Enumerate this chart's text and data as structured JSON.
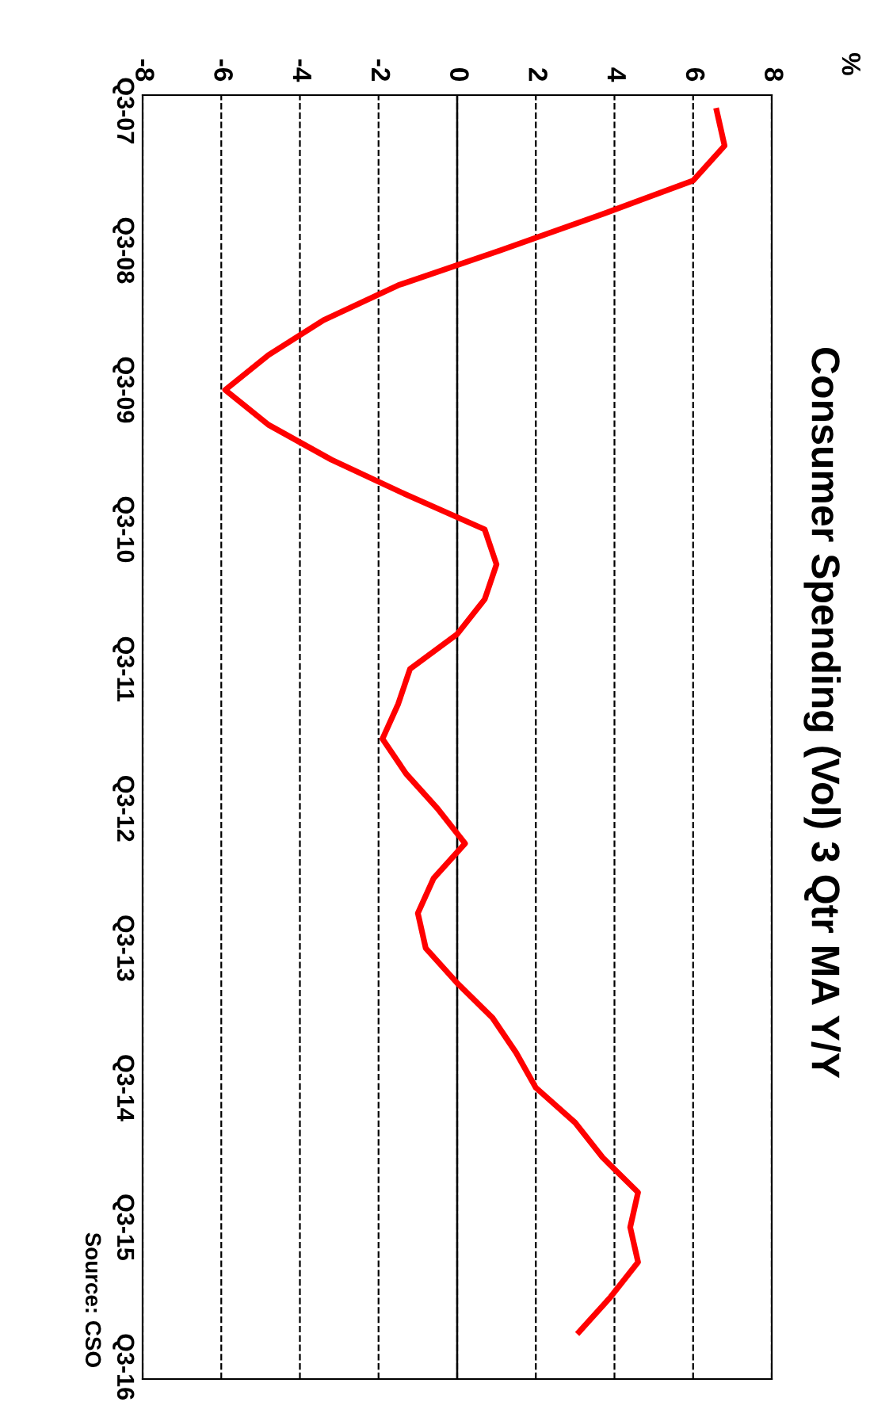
{
  "chart_data": {
    "type": "line",
    "orientation": "horizontal",
    "title": "Consumer Spending (Vol) 3 Qtr MA Y/Y",
    "categories": [
      "Q3-07",
      null,
      null,
      null,
      "Q3-08",
      null,
      null,
      null,
      "Q3-09",
      null,
      null,
      null,
      "Q3-10",
      null,
      null,
      null,
      "Q3-11",
      null,
      null,
      null,
      "Q3-12",
      null,
      null,
      null,
      "Q3-13",
      null,
      null,
      null,
      "Q3-14",
      null,
      null,
      null,
      "Q3-15",
      null,
      null,
      null,
      "Q3-16"
    ],
    "series": [
      {
        "color": "#ff0000",
        "values": [
          6.6,
          6.8,
          6.0,
          3.6,
          1.1,
          -1.5,
          -3.4,
          -4.8,
          -5.9,
          -4.8,
          -3.2,
          -1.3,
          0.7,
          1.0,
          0.7,
          0.0,
          -1.2,
          -1.5,
          -1.9,
          -1.3,
          -0.5,
          0.2,
          -0.6,
          -1.0,
          -0.8,
          0.0,
          0.9,
          1.5,
          2.0,
          3.0,
          3.7,
          4.6,
          4.4,
          4.6,
          3.9,
          3.1,
          null
        ]
      }
    ],
    "xlim": [
      -8,
      8
    ],
    "xticks": [
      -8,
      -6,
      -4,
      -2,
      0,
      2,
      4,
      6,
      8
    ],
    "grid": "x",
    "line_style": "solid",
    "marker": "none",
    "legend": false,
    "ref_lines": [
      {
        "axis": "x",
        "value": 0,
        "color": "#000000",
        "line_style": "solid"
      }
    ],
    "annotations": [
      "%",
      "Source: CSO"
    ]
  }
}
